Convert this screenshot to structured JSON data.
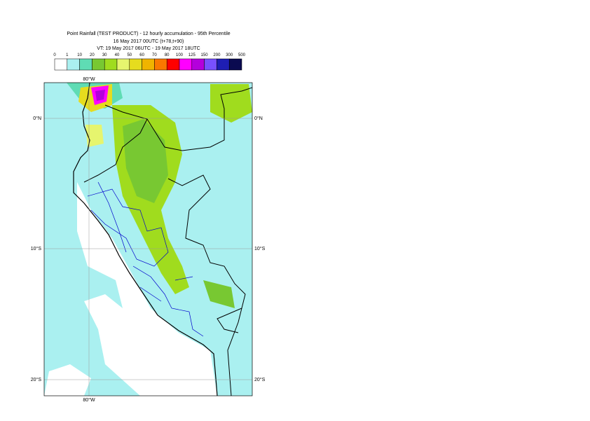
{
  "header": {
    "title": "Point Rainfall (TEST PRODUCT) - 12 hourly accumulation - 95th Percentile",
    "run": "16 May 2017 00UTC (t+78,t+90)",
    "valid": "VT: 19 May 2017 06UTC - 19 May 2017 18UTC"
  },
  "legend": {
    "labels": [
      "0",
      "1",
      "10",
      "20",
      "30",
      "40",
      "50",
      "60",
      "70",
      "80",
      "100",
      "125",
      "150",
      "200",
      "300",
      "500"
    ],
    "colors": [
      "#ffffff",
      "#aaf0f0",
      "#5fdcb4",
      "#78c832",
      "#a0dc1e",
      "#e6f56e",
      "#e6dc1e",
      "#f0b400",
      "#fa7800",
      "#ff0000",
      "#ff00ff",
      "#b400dc",
      "#7850ff",
      "#1e1eb4",
      "#0a0a50"
    ]
  },
  "map": {
    "lon_labels": [
      "80°W"
    ],
    "lat_labels": [
      "0°N",
      "10°S",
      "20°S"
    ]
  }
}
